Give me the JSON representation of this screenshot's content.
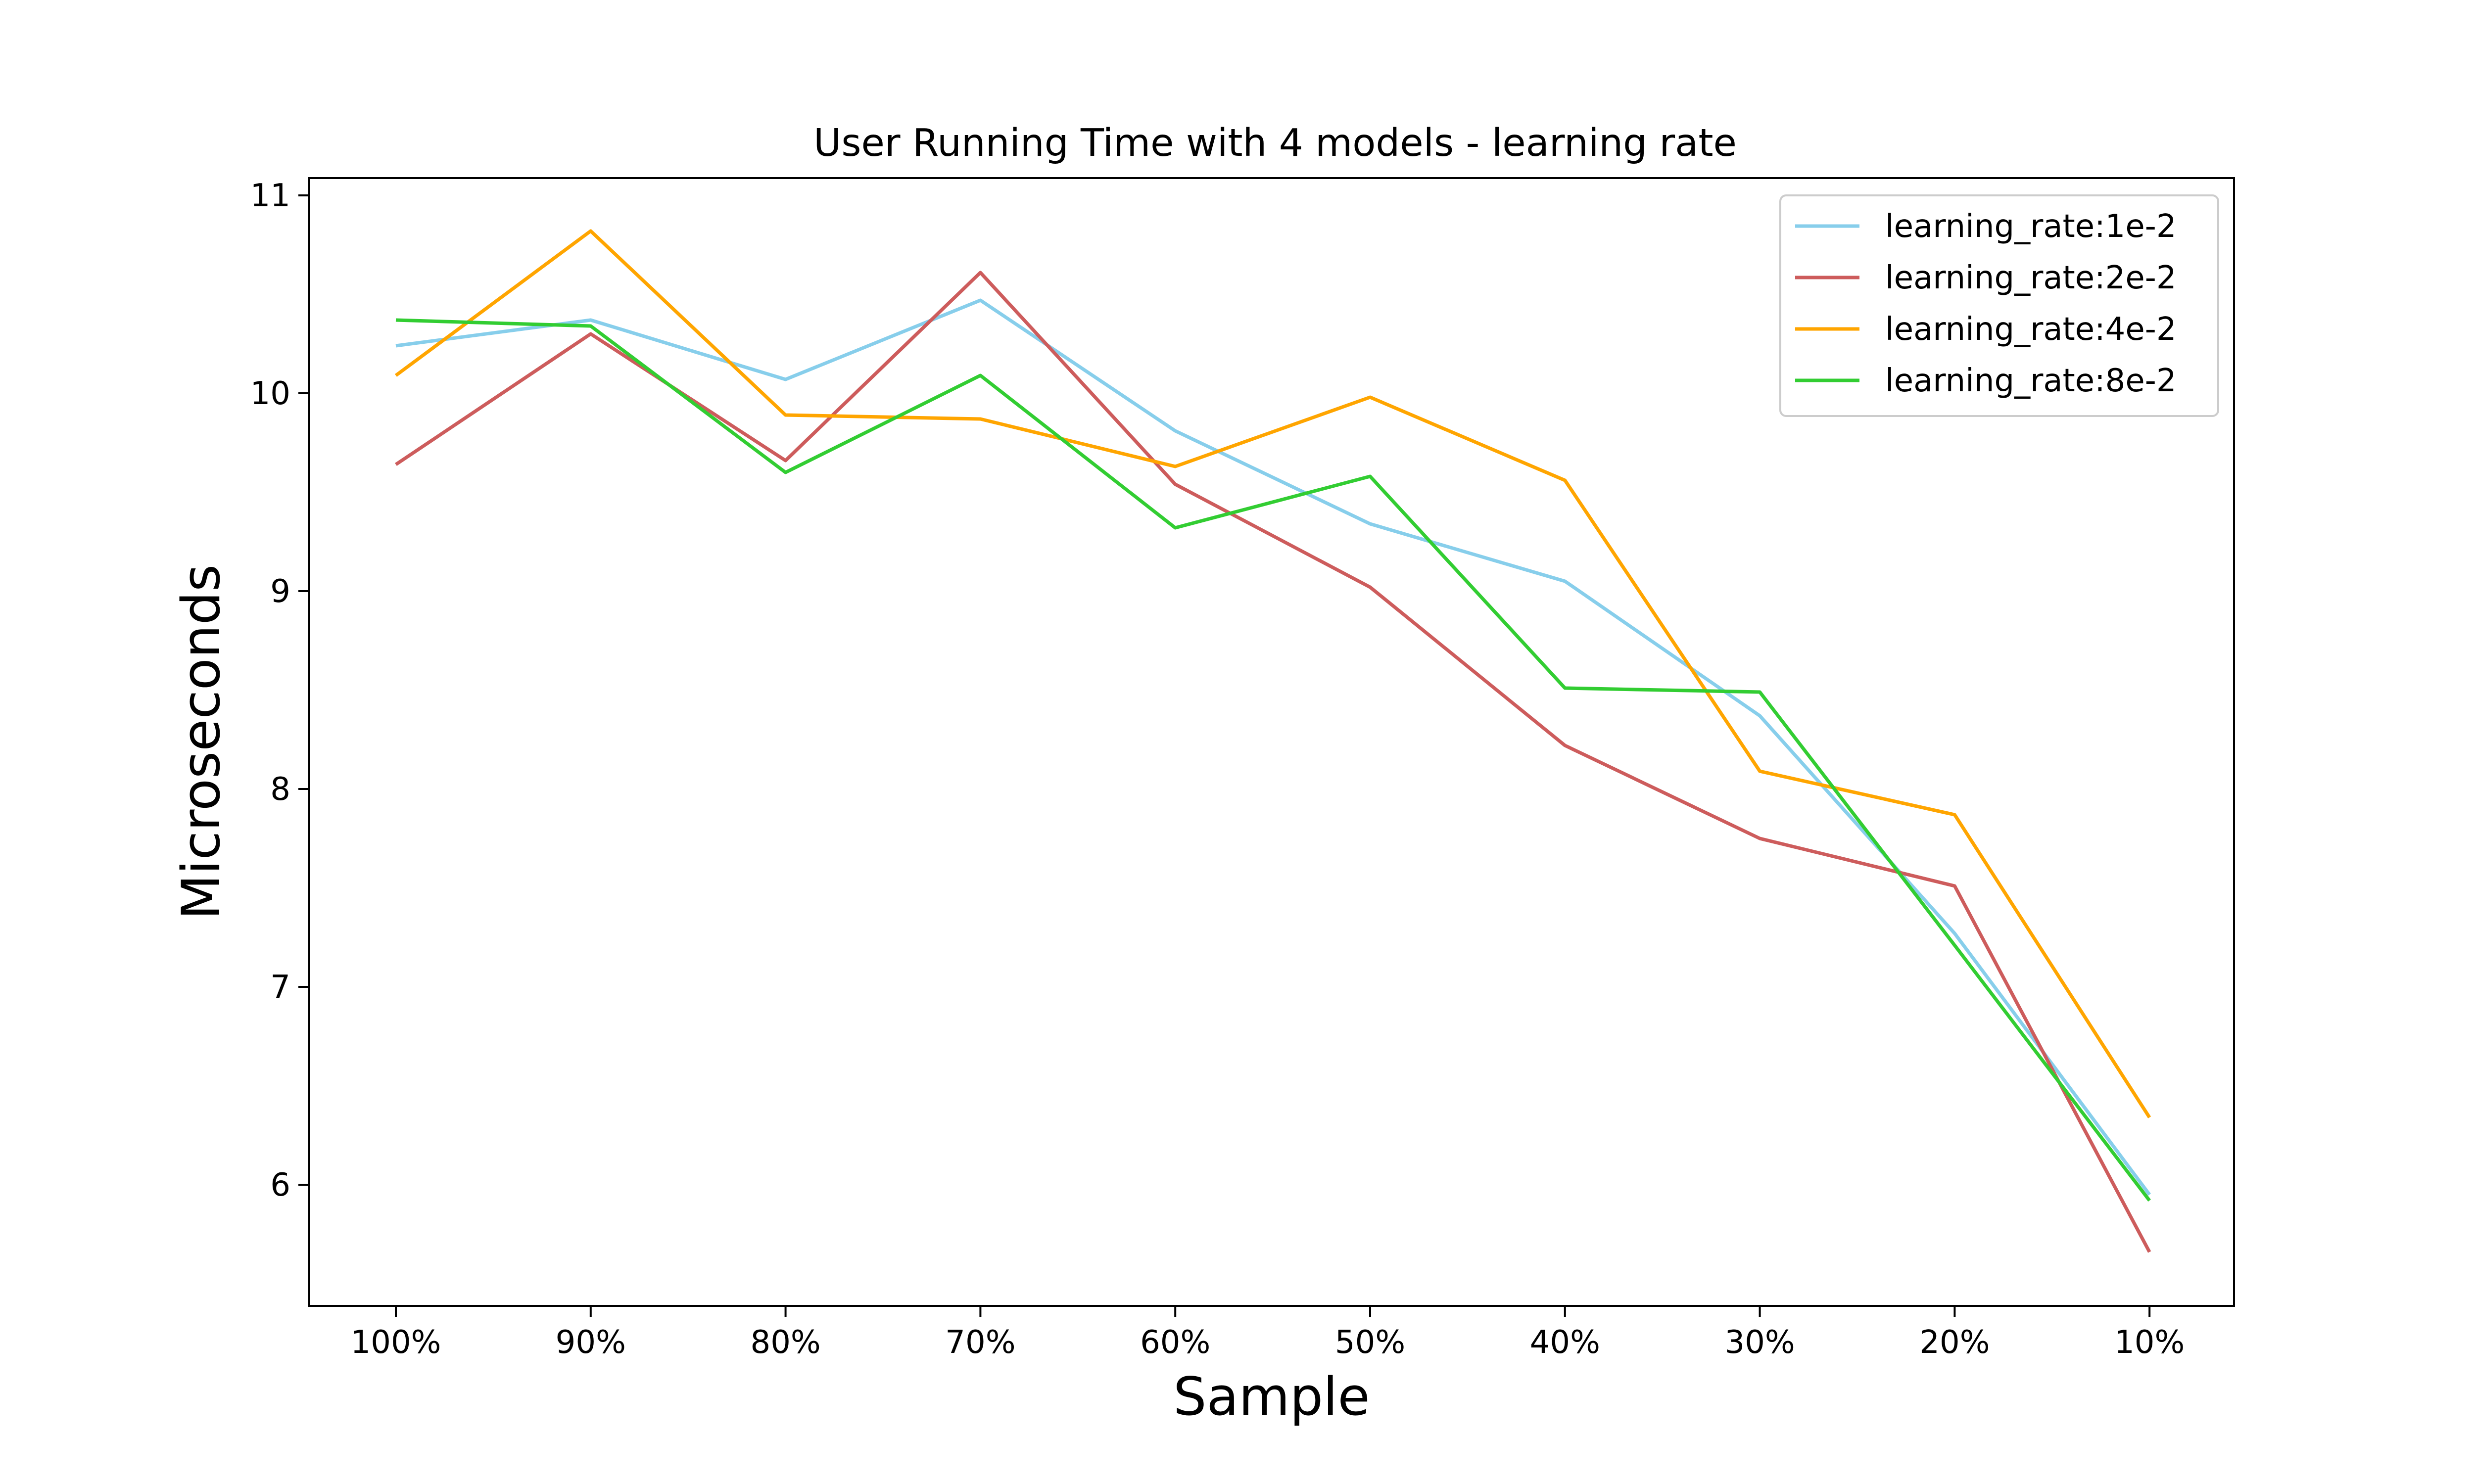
{
  "chart_data": {
    "type": "line",
    "title": "User Running Time with 4 models - learning rate",
    "xlabel": "Sample",
    "ylabel": "Microseconds",
    "categories": [
      "100%",
      "90%",
      "80%",
      "70%",
      "60%",
      "50%",
      "40%",
      "30%",
      "20%",
      "10%"
    ],
    "ylim": [
      5.4,
      11.1
    ],
    "yticks": [
      6,
      7,
      8,
      9,
      10,
      11
    ],
    "grid": false,
    "legend_position": "top-right",
    "series": [
      {
        "name": "learning_rate:1e-2",
        "color": "#87ceeb",
        "values": [
          10.24,
          10.37,
          10.07,
          10.47,
          9.81,
          9.34,
          9.05,
          8.37,
          7.27,
          5.95
        ]
      },
      {
        "name": "learning_rate:2e-2",
        "color": "#cd5c5c",
        "values": [
          9.64,
          10.3,
          9.66,
          10.61,
          9.54,
          9.02,
          8.22,
          7.75,
          7.51,
          5.66
        ]
      },
      {
        "name": "learning_rate:4e-2",
        "color": "#ffa500",
        "values": [
          10.09,
          10.82,
          9.89,
          9.87,
          9.63,
          9.98,
          9.56,
          8.09,
          7.87,
          6.34
        ]
      },
      {
        "name": "learning_rate:8e-2",
        "color": "#32cd32",
        "values": [
          10.37,
          10.34,
          9.6,
          10.09,
          9.32,
          9.58,
          8.51,
          8.49,
          7.21,
          5.92
        ]
      }
    ]
  }
}
